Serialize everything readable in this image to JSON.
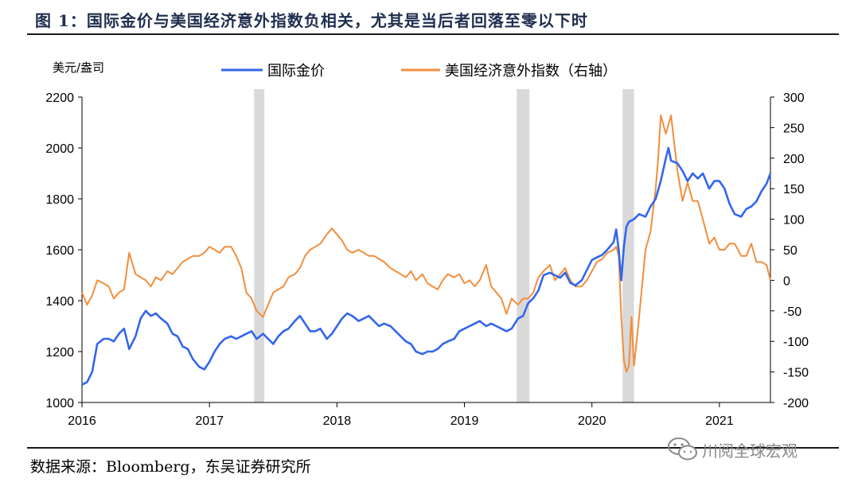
{
  "title": "图 1：国际金价与美国经济意外指数负相关，尤其是当后者回落至零以下时",
  "source": "数据来源：Bloomberg，东吴证券研究所",
  "watermark": "川阅全球宏观",
  "watermark_icon": "wechat-icon",
  "colors": {
    "gold": "#3366ee",
    "surprise": "#f28e3c",
    "shade": "#d9d9d9"
  },
  "chart_data": {
    "type": "line",
    "y_unit_label": "美元/盎司",
    "legend_position": "top",
    "x_ticks": [
      "2016",
      "2017",
      "2018",
      "2019",
      "2020",
      "2021"
    ],
    "x_range": [
      2016.0,
      2021.4
    ],
    "y_left": {
      "range": [
        1000,
        2200
      ],
      "ticks": [
        1000,
        1200,
        1400,
        1600,
        1800,
        2000,
        2200
      ]
    },
    "y_right": {
      "range": [
        -200,
        300
      ],
      "ticks": [
        -200,
        -150,
        -100,
        -50,
        0,
        50,
        100,
        150,
        200,
        250,
        300
      ]
    },
    "shaded_periods": [
      [
        2017.35,
        2017.43
      ],
      [
        2019.41,
        2019.51
      ],
      [
        2020.24,
        2020.33
      ]
    ],
    "series": [
      {
        "name": "国际金价",
        "axis": "left",
        "color": "#3366ee",
        "x": [
          2016.0,
          2016.04,
          2016.08,
          2016.12,
          2016.17,
          2016.21,
          2016.25,
          2016.29,
          2016.33,
          2016.37,
          2016.42,
          2016.46,
          2016.5,
          2016.54,
          2016.58,
          2016.62,
          2016.67,
          2016.71,
          2016.75,
          2016.79,
          2016.83,
          2016.87,
          2016.92,
          2016.96,
          2017.0,
          2017.04,
          2017.08,
          2017.12,
          2017.17,
          2017.21,
          2017.25,
          2017.29,
          2017.33,
          2017.37,
          2017.42,
          2017.46,
          2017.5,
          2017.54,
          2017.58,
          2017.62,
          2017.67,
          2017.71,
          2017.75,
          2017.79,
          2017.83,
          2017.87,
          2017.92,
          2017.96,
          2018.0,
          2018.04,
          2018.08,
          2018.12,
          2018.17,
          2018.21,
          2018.25,
          2018.29,
          2018.33,
          2018.37,
          2018.42,
          2018.46,
          2018.5,
          2018.54,
          2018.58,
          2018.62,
          2018.67,
          2018.71,
          2018.75,
          2018.79,
          2018.83,
          2018.87,
          2018.92,
          2018.96,
          2019.0,
          2019.04,
          2019.08,
          2019.12,
          2019.17,
          2019.21,
          2019.25,
          2019.29,
          2019.33,
          2019.37,
          2019.42,
          2019.46,
          2019.5,
          2019.54,
          2019.58,
          2019.62,
          2019.67,
          2019.71,
          2019.75,
          2019.79,
          2019.83,
          2019.87,
          2019.92,
          2019.96,
          2020.0,
          2020.04,
          2020.08,
          2020.12,
          2020.17,
          2020.19,
          2020.21,
          2020.23,
          2020.25,
          2020.27,
          2020.29,
          2020.33,
          2020.37,
          2020.42,
          2020.46,
          2020.5,
          2020.54,
          2020.58,
          2020.6,
          2020.62,
          2020.67,
          2020.71,
          2020.75,
          2020.79,
          2020.83,
          2020.87,
          2020.92,
          2020.96,
          2021.0,
          2021.04,
          2021.08,
          2021.12,
          2021.17,
          2021.21,
          2021.25,
          2021.29,
          2021.33,
          2021.37,
          2021.4
        ],
        "values": [
          1070,
          1080,
          1120,
          1230,
          1250,
          1250,
          1240,
          1270,
          1290,
          1210,
          1260,
          1330,
          1360,
          1340,
          1350,
          1330,
          1310,
          1270,
          1260,
          1220,
          1210,
          1170,
          1140,
          1130,
          1160,
          1200,
          1230,
          1250,
          1260,
          1250,
          1260,
          1270,
          1280,
          1250,
          1270,
          1250,
          1230,
          1260,
          1280,
          1290,
          1320,
          1340,
          1310,
          1280,
          1280,
          1290,
          1250,
          1270,
          1300,
          1330,
          1350,
          1340,
          1320,
          1330,
          1340,
          1320,
          1300,
          1310,
          1300,
          1280,
          1260,
          1240,
          1230,
          1200,
          1190,
          1200,
          1200,
          1210,
          1230,
          1240,
          1250,
          1280,
          1290,
          1300,
          1310,
          1320,
          1300,
          1310,
          1300,
          1290,
          1280,
          1290,
          1330,
          1340,
          1390,
          1410,
          1440,
          1500,
          1510,
          1500,
          1490,
          1510,
          1470,
          1460,
          1480,
          1520,
          1560,
          1570,
          1580,
          1600,
          1630,
          1680,
          1600,
          1480,
          1610,
          1690,
          1710,
          1720,
          1740,
          1730,
          1770,
          1800,
          1870,
          1960,
          2000,
          1950,
          1940,
          1910,
          1870,
          1900,
          1880,
          1900,
          1840,
          1870,
          1870,
          1840,
          1780,
          1740,
          1730,
          1760,
          1770,
          1790,
          1830,
          1860,
          1900
        ]
      },
      {
        "name": "美国经济意外指数（右轴）",
        "axis": "right",
        "color": "#f28e3c",
        "x": [
          2016.0,
          2016.04,
          2016.08,
          2016.12,
          2016.17,
          2016.21,
          2016.25,
          2016.29,
          2016.33,
          2016.37,
          2016.42,
          2016.46,
          2016.5,
          2016.54,
          2016.58,
          2016.62,
          2016.67,
          2016.71,
          2016.75,
          2016.79,
          2016.83,
          2016.87,
          2016.92,
          2016.96,
          2017.0,
          2017.04,
          2017.08,
          2017.12,
          2017.17,
          2017.21,
          2017.25,
          2017.29,
          2017.33,
          2017.37,
          2017.42,
          2017.46,
          2017.5,
          2017.54,
          2017.58,
          2017.62,
          2017.67,
          2017.71,
          2017.75,
          2017.79,
          2017.83,
          2017.87,
          2017.92,
          2017.96,
          2018.0,
          2018.04,
          2018.08,
          2018.12,
          2018.17,
          2018.21,
          2018.25,
          2018.29,
          2018.33,
          2018.37,
          2018.42,
          2018.46,
          2018.5,
          2018.54,
          2018.58,
          2018.62,
          2018.67,
          2018.71,
          2018.75,
          2018.79,
          2018.83,
          2018.87,
          2018.92,
          2018.96,
          2019.0,
          2019.04,
          2019.08,
          2019.12,
          2019.17,
          2019.21,
          2019.25,
          2019.29,
          2019.33,
          2019.37,
          2019.42,
          2019.46,
          2019.5,
          2019.54,
          2019.58,
          2019.62,
          2019.67,
          2019.71,
          2019.75,
          2019.79,
          2019.83,
          2019.87,
          2019.92,
          2019.96,
          2020.0,
          2020.04,
          2020.08,
          2020.12,
          2020.17,
          2020.19,
          2020.21,
          2020.23,
          2020.25,
          2020.27,
          2020.29,
          2020.31,
          2020.33,
          2020.35,
          2020.37,
          2020.42,
          2020.46,
          2020.5,
          2020.52,
          2020.54,
          2020.58,
          2020.62,
          2020.67,
          2020.71,
          2020.75,
          2020.79,
          2020.83,
          2020.87,
          2020.92,
          2020.96,
          2021.0,
          2021.04,
          2021.08,
          2021.12,
          2021.17,
          2021.21,
          2021.25,
          2021.29,
          2021.33,
          2021.37,
          2021.4
        ],
        "values": [
          -20,
          -40,
          -25,
          0,
          -5,
          -10,
          -30,
          -20,
          -15,
          45,
          10,
          5,
          0,
          -10,
          5,
          0,
          15,
          10,
          20,
          30,
          35,
          40,
          40,
          45,
          55,
          50,
          45,
          55,
          55,
          40,
          20,
          -20,
          -30,
          -50,
          -60,
          -40,
          -20,
          -15,
          -10,
          5,
          10,
          20,
          40,
          50,
          55,
          60,
          75,
          85,
          75,
          65,
          50,
          45,
          50,
          45,
          40,
          40,
          35,
          30,
          20,
          15,
          10,
          5,
          15,
          0,
          10,
          -5,
          -10,
          -15,
          0,
          10,
          5,
          10,
          -5,
          0,
          -10,
          0,
          25,
          -10,
          -20,
          -30,
          -55,
          -30,
          -40,
          -30,
          -30,
          -20,
          5,
          15,
          25,
          0,
          10,
          20,
          0,
          -10,
          -10,
          0,
          15,
          30,
          35,
          45,
          50,
          55,
          40,
          -60,
          -130,
          -150,
          -140,
          -60,
          -140,
          -100,
          -60,
          50,
          80,
          150,
          200,
          270,
          240,
          270,
          180,
          130,
          160,
          130,
          130,
          100,
          60,
          70,
          50,
          50,
          60,
          60,
          40,
          40,
          60,
          30,
          30,
          25,
          0
        ]
      }
    ]
  }
}
